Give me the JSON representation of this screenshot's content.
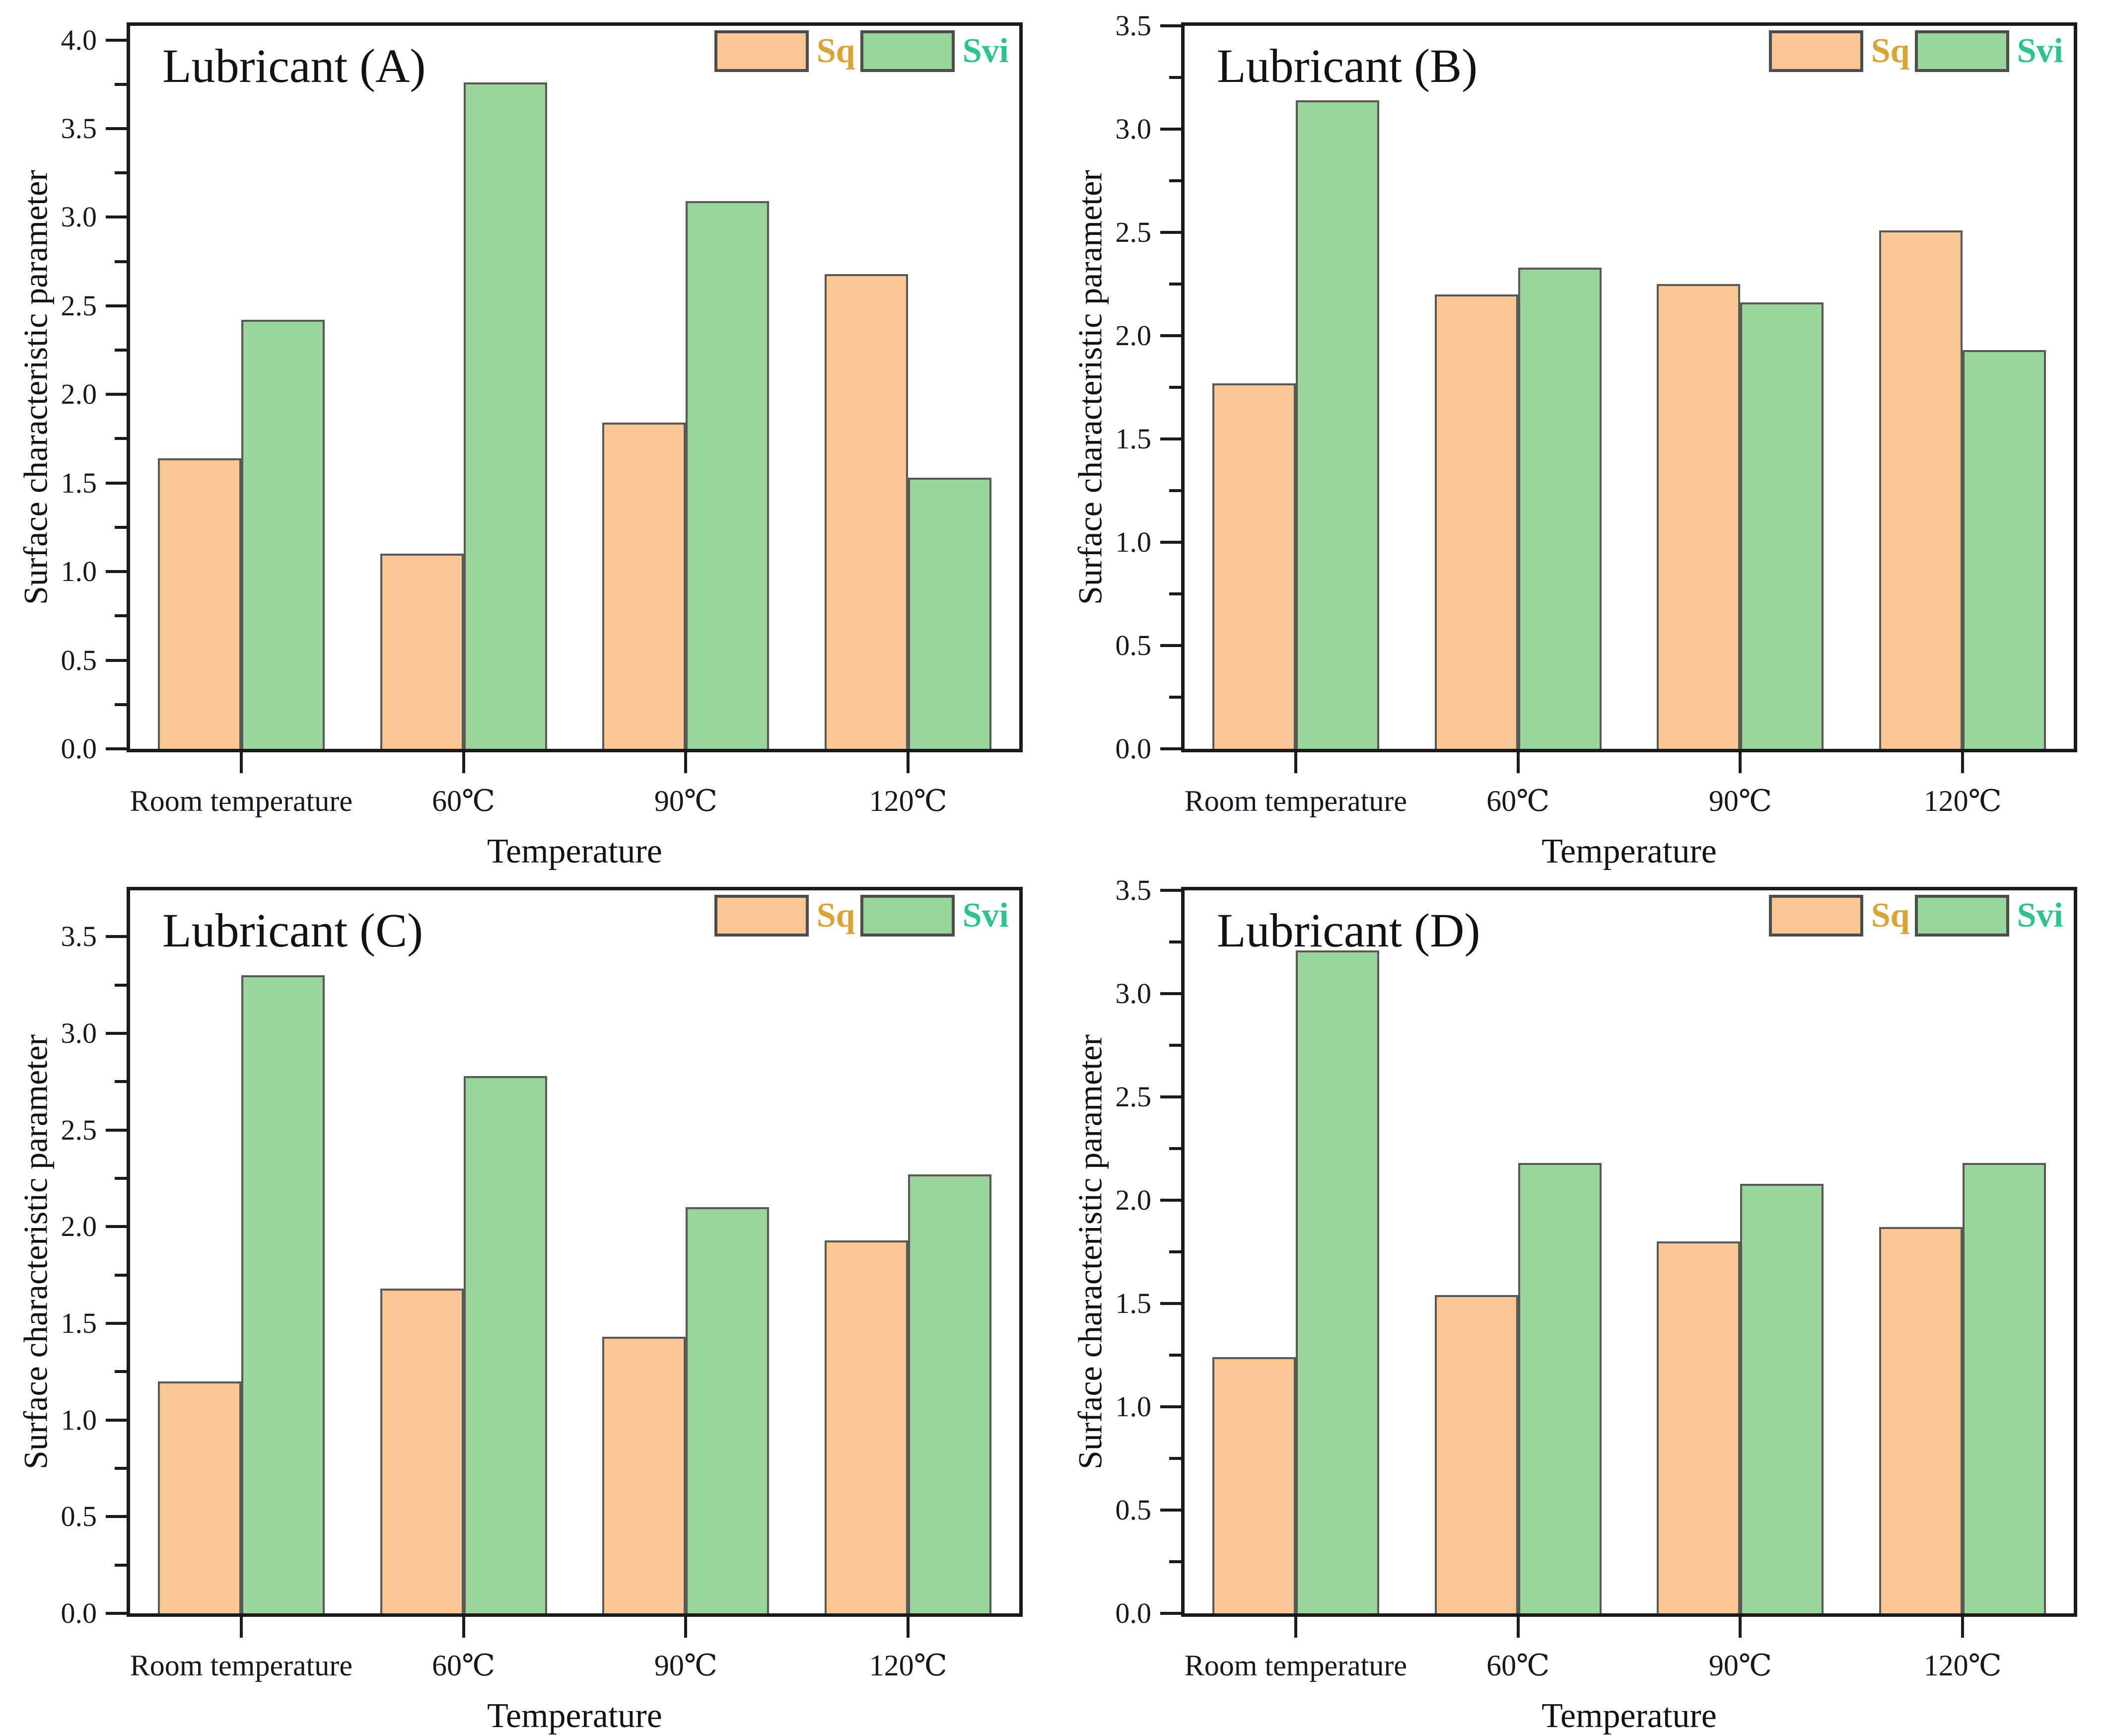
{
  "figure": {
    "background": "#ffffff",
    "accent_orange": "#FAC794",
    "accent_green": "#99D49A",
    "sq_text_color": "#D9A437",
    "svi_text_color": "#2EC489",
    "axis_color": "#1a1a1a"
  },
  "chart_data": [
    {
      "type": "bar",
      "title": "Lubricant (A)",
      "xlabel": "Temperature",
      "ylabel": "Surface characteristic parameter",
      "categories": [
        "Room temperature",
        "60℃",
        "90℃",
        "120℃"
      ],
      "series": [
        {
          "name": "Sq",
          "fill": "#FAC794",
          "label_color": "#D9A437",
          "values": [
            1.64,
            1.1,
            1.84,
            2.68
          ]
        },
        {
          "name": "Svi",
          "fill": "#99D49A",
          "label_color": "#2EC489",
          "values": [
            2.42,
            3.76,
            3.09,
            1.53
          ]
        }
      ],
      "ylim": [
        0,
        4.08
      ],
      "ytick_max": 4.0,
      "ytick_step": 0.5,
      "minor_tick_step": 0.25,
      "grid": false,
      "legend_position": "top-right"
    },
    {
      "type": "bar",
      "title": "Lubricant (B)",
      "xlabel": "Temperature",
      "ylabel": "Surface characteristic parameter",
      "categories": [
        "Room temperature",
        "60℃",
        "90℃",
        "120℃"
      ],
      "series": [
        {
          "name": "Sq",
          "fill": "#FAC794",
          "label_color": "#D9A437",
          "values": [
            1.77,
            2.2,
            2.25,
            2.51
          ]
        },
        {
          "name": "Svi",
          "fill": "#99D49A",
          "label_color": "#2EC489",
          "values": [
            3.14,
            2.33,
            2.16,
            1.93
          ]
        }
      ],
      "ylim": [
        0,
        3.5
      ],
      "ytick_max": 3.5,
      "ytick_step": 0.5,
      "minor_tick_step": 0.25,
      "grid": false,
      "legend_position": "top-right"
    },
    {
      "type": "bar",
      "title": "Lubricant (C)",
      "xlabel": "Temperature",
      "ylabel": "Surface characteristic parameter",
      "categories": [
        "Room temperature",
        "60℃",
        "90℃",
        "120℃"
      ],
      "series": [
        {
          "name": "Sq",
          "fill": "#FAC794",
          "label_color": "#D9A437",
          "values": [
            1.2,
            1.68,
            1.43,
            1.93
          ]
        },
        {
          "name": "Svi",
          "fill": "#99D49A",
          "label_color": "#2EC489",
          "values": [
            3.3,
            2.78,
            2.1,
            2.27
          ]
        }
      ],
      "ylim": [
        0,
        3.74
      ],
      "ytick_max": 3.5,
      "ytick_step": 0.5,
      "minor_tick_step": 0.25,
      "grid": false,
      "legend_position": "top-right"
    },
    {
      "type": "bar",
      "title": "Lubricant (D)",
      "xlabel": "Temperature",
      "ylabel": "Surface characteristic parameter",
      "categories": [
        "Room temperature",
        "60℃",
        "90℃",
        "120℃"
      ],
      "series": [
        {
          "name": "Sq",
          "fill": "#FAC794",
          "label_color": "#D9A437",
          "values": [
            1.24,
            1.54,
            1.8,
            1.87
          ]
        },
        {
          "name": "Svi",
          "fill": "#99D49A",
          "label_color": "#2EC489",
          "values": [
            3.21,
            2.18,
            2.08,
            2.18
          ]
        }
      ],
      "ylim": [
        0,
        3.5
      ],
      "ytick_max": 3.5,
      "ytick_step": 0.5,
      "minor_tick_step": 0.25,
      "grid": false,
      "legend_position": "top-right"
    }
  ]
}
